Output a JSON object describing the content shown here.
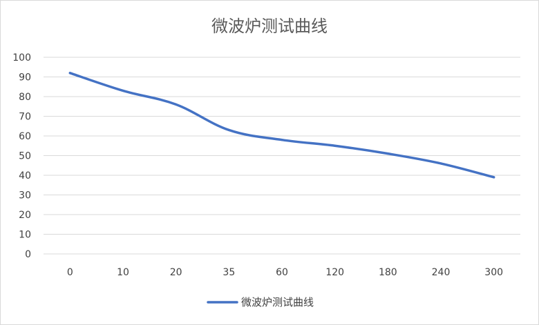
{
  "chart_data": {
    "type": "line",
    "title": "微波炉测试曲线",
    "categories": [
      "0",
      "10",
      "20",
      "35",
      "60",
      "120",
      "180",
      "240",
      "300"
    ],
    "series": [
      {
        "name": "微波炉测试曲线",
        "values": [
          92,
          83,
          76,
          63,
          58,
          55,
          51,
          46,
          39
        ],
        "color": "#4472c4"
      }
    ],
    "ylim": [
      0,
      100
    ],
    "yticks": [
      0,
      10,
      20,
      30,
      40,
      50,
      60,
      70,
      80,
      90,
      100
    ],
    "grid": true,
    "legend": "bottom"
  }
}
